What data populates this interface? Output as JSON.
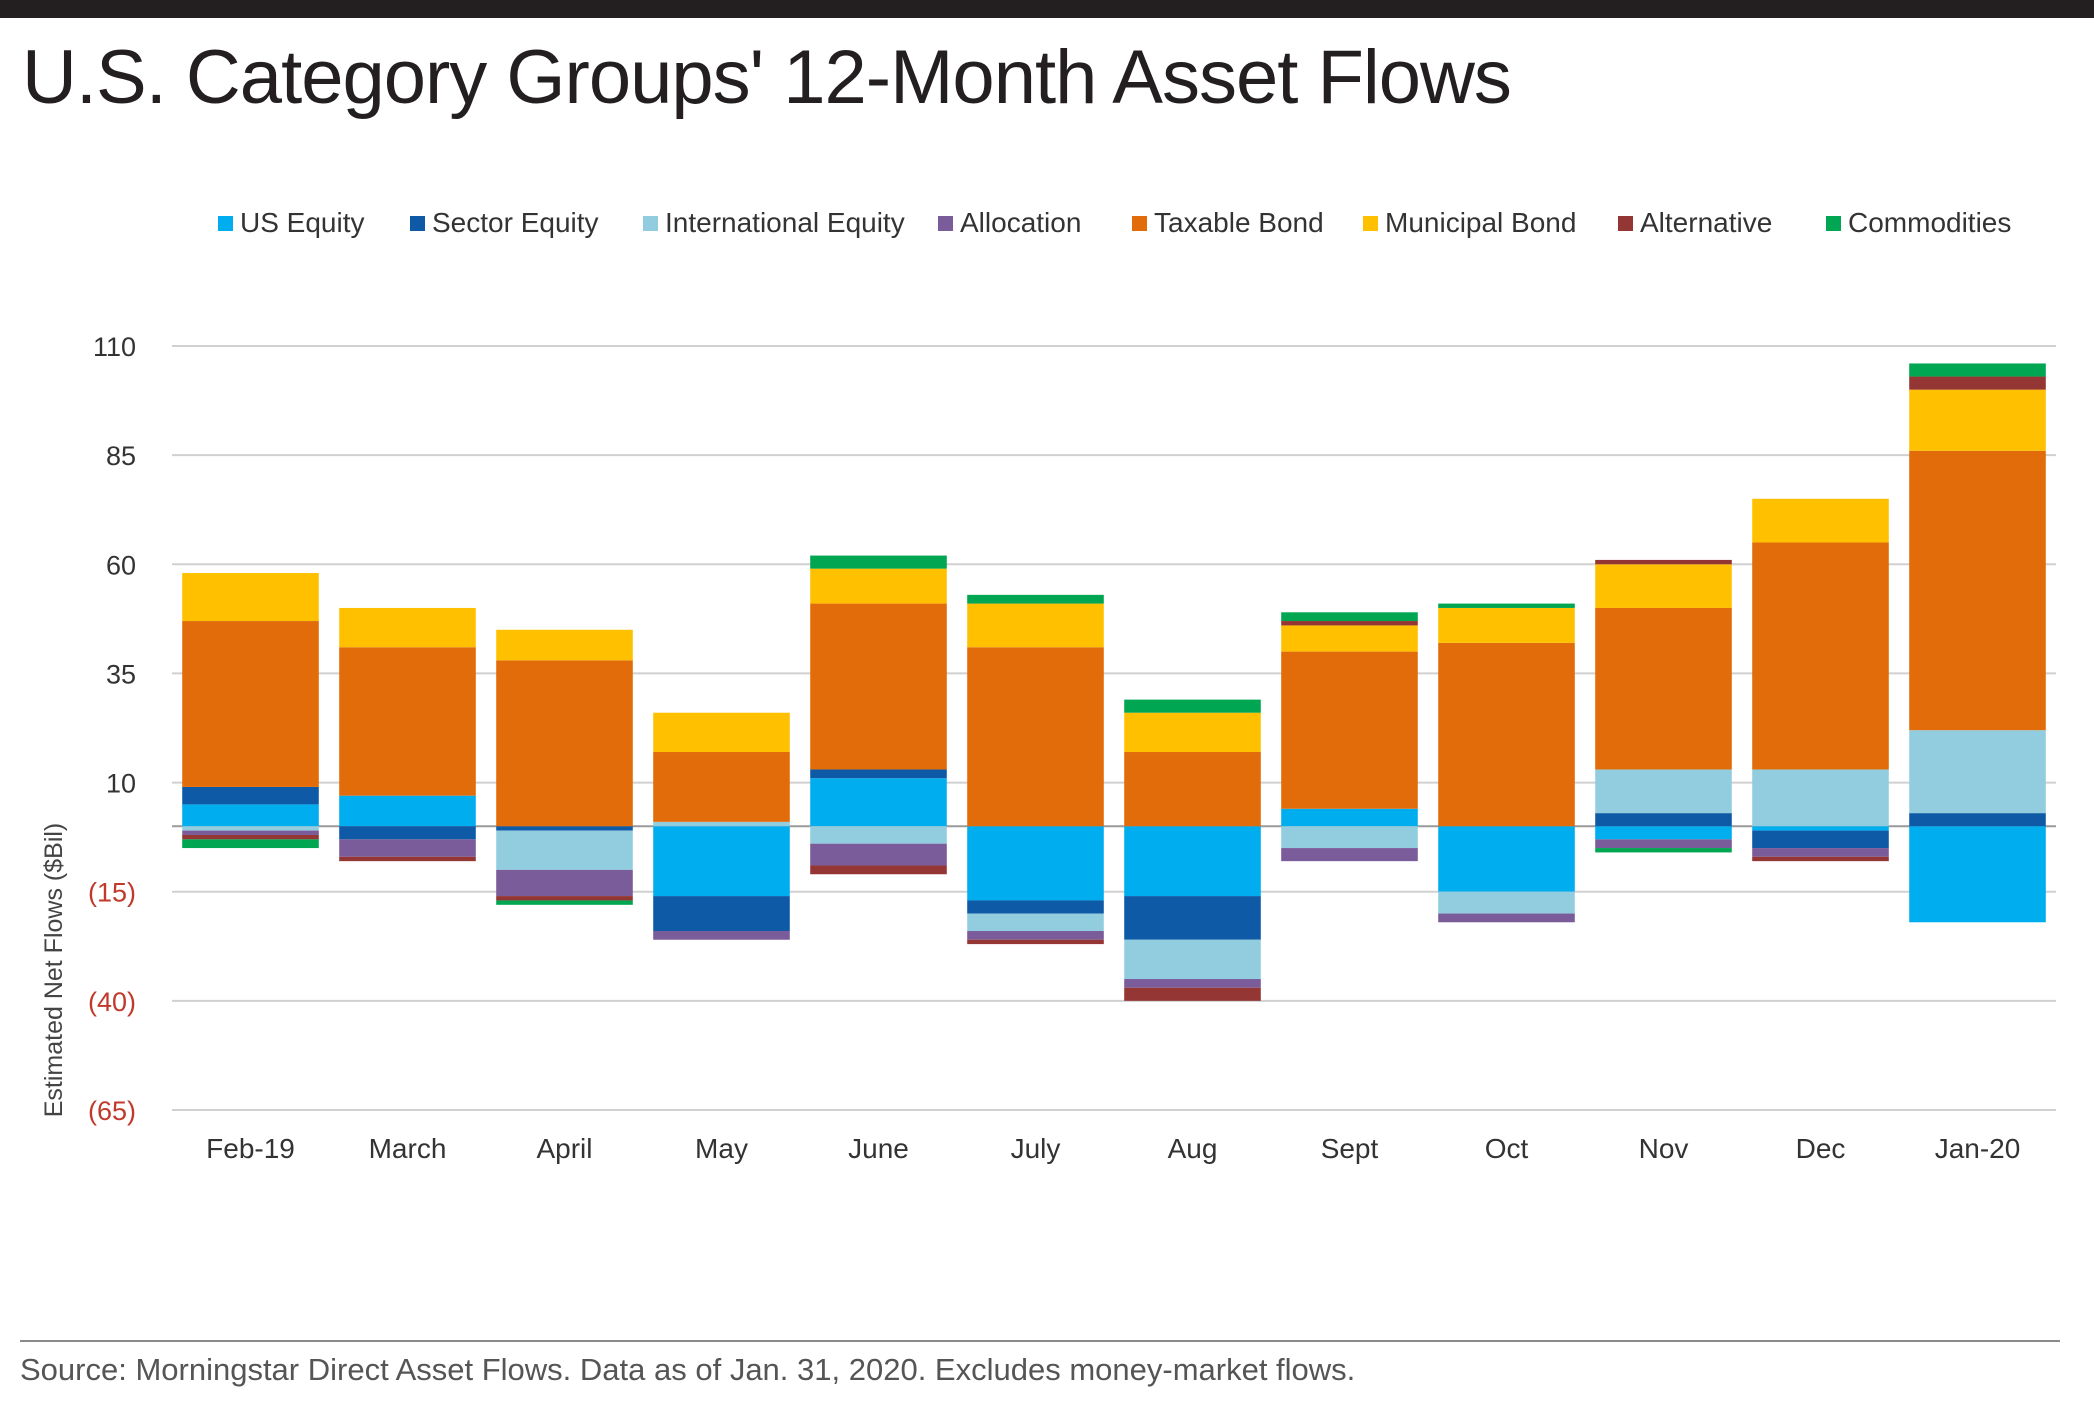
{
  "title": "U.S. Category Groups' 12-Month Asset Flows",
  "source": "Source: Morningstar Direct Asset Flows. Data as of Jan. 31, 2020. Excludes money-market flows.",
  "chart_data": {
    "type": "bar",
    "stacked": true,
    "title": "U.S. Category Groups' 12-Month Asset Flows",
    "xlabel": "",
    "ylabel": "Estimated Net Flows ($Bil)",
    "ylim": [
      -65,
      110
    ],
    "yticks": [
      110,
      85,
      60,
      35,
      10,
      -15,
      -40,
      -65
    ],
    "ytick_labels": [
      "110",
      "85",
      "60",
      "35",
      "10",
      "(15)",
      "(40)",
      "(65)"
    ],
    "grid": true,
    "legend_position": "top",
    "categories": [
      "Feb-19",
      "March",
      "April",
      "May",
      "June",
      "July",
      "Aug",
      "Sept",
      "Oct",
      "Nov",
      "Dec",
      "Jan-20"
    ],
    "series": [
      {
        "name": "US Equity",
        "color": "#00aeef",
        "values": [
          5,
          7,
          0,
          -16,
          11,
          -17,
          -16,
          4,
          -15,
          -3,
          -1,
          -22
        ]
      },
      {
        "name": "Sector Equity",
        "color": "#0f5aa6",
        "values": [
          4,
          -3,
          -1,
          -8,
          2,
          -3,
          -10,
          0,
          0,
          3,
          -4,
          3
        ]
      },
      {
        "name": "International Equity",
        "color": "#92cddf",
        "values": [
          -1,
          0,
          -9,
          1,
          -4,
          -4,
          -9,
          -5,
          -5,
          10,
          13,
          19
        ]
      },
      {
        "name": "Allocation",
        "color": "#7b5c9a",
        "values": [
          -1,
          -4,
          -6,
          -2,
          -5,
          -2,
          -2,
          -3,
          -2,
          -2,
          -2,
          0
        ]
      },
      {
        "name": "Taxable Bond",
        "color": "#e36c0a",
        "values": [
          38,
          34,
          38,
          16,
          38,
          41,
          17,
          36,
          42,
          37,
          52,
          64
        ]
      },
      {
        "name": "Municipal Bond",
        "color": "#ffc000",
        "values": [
          11,
          9,
          7,
          9,
          8,
          10,
          9,
          6,
          8,
          10,
          10,
          14
        ]
      },
      {
        "name": "Alternative",
        "color": "#943634",
        "values": [
          -1,
          -1,
          -1,
          0,
          -2,
          -1,
          -3,
          1,
          0,
          1,
          -1,
          3
        ]
      },
      {
        "name": "Commodities",
        "color": "#00a651",
        "values": [
          -2,
          0,
          -1,
          0,
          3,
          2,
          3,
          2,
          1,
          -1,
          0,
          3
        ]
      }
    ]
  }
}
